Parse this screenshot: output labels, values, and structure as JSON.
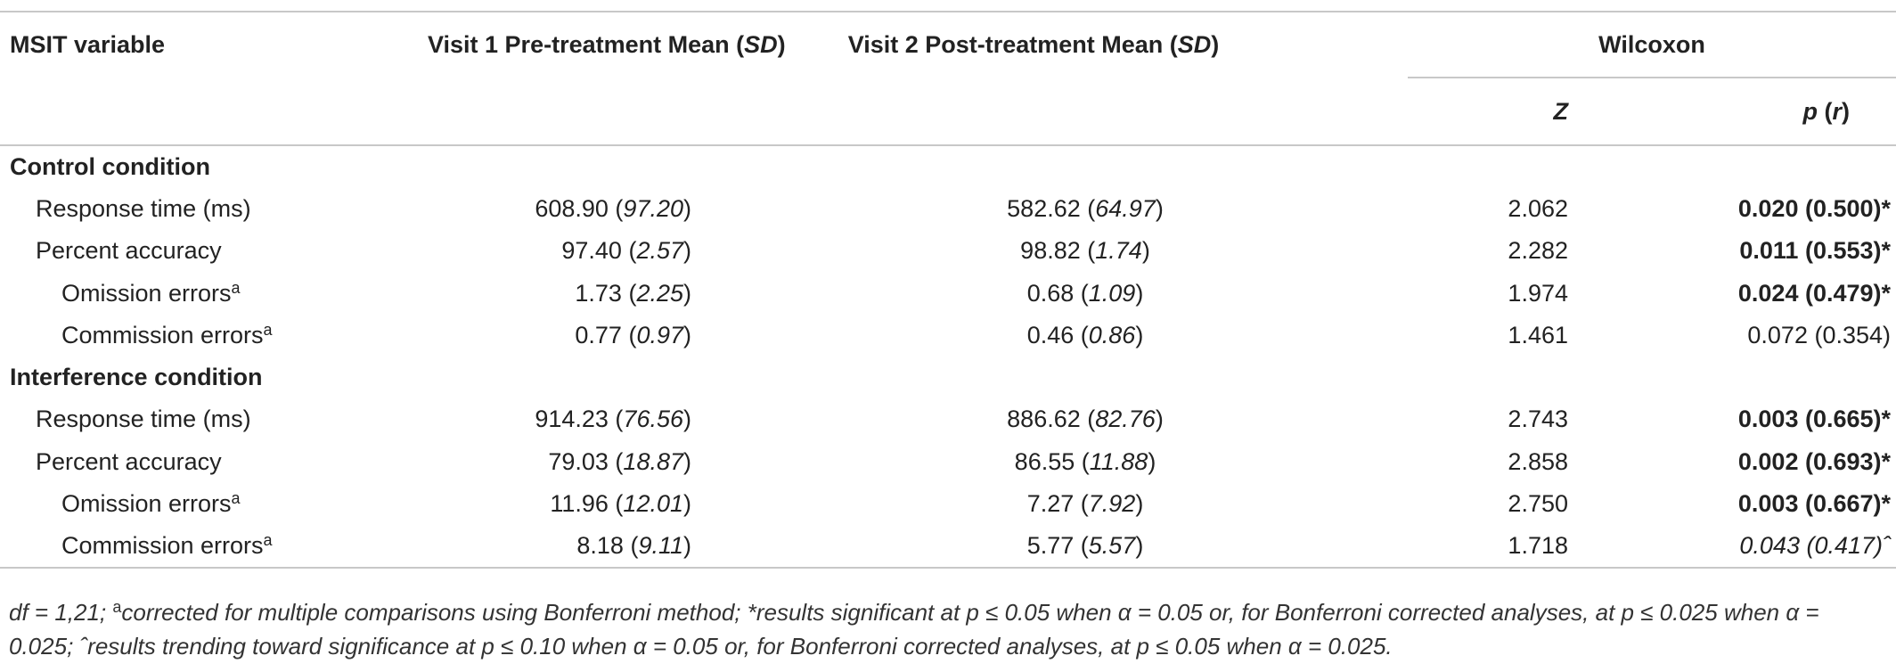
{
  "table": {
    "headers": {
      "variable": "MSIT variable",
      "visit1_prefix": "Visit 1 Pre-treatment Mean (",
      "visit1_sd": "SD",
      "visit1_suffix": ")",
      "visit2_prefix": "Visit 2 Post-treatment Mean (",
      "visit2_sd": "SD",
      "visit2_suffix": ")",
      "wilcoxon": "Wilcoxon",
      "z": "Z",
      "p": "p",
      "p_open": " (",
      "r": "r",
      "p_close": ")"
    },
    "sections": [
      {
        "title": "Control condition",
        "rows": [
          {
            "label": "Response time (ms)",
            "sup": "",
            "pre_mean": "608.90",
            "pre_sd": "97.20",
            "post_mean": "582.62",
            "post_sd": "64.97",
            "z": "2.062",
            "p": "0.020 (0.500)*"
          },
          {
            "label": "Percent accuracy",
            "sup": "",
            "pre_mean": "97.40",
            "pre_sd": "2.57",
            "post_mean": "98.82",
            "post_sd": "1.74",
            "z": "2.282",
            "p": "0.011 (0.553)*"
          },
          {
            "label": "Omission errors",
            "sup": "a",
            "pre_mean": "1.73",
            "pre_sd": "2.25",
            "post_mean": "0.68",
            "post_sd": "1.09",
            "z": "1.974",
            "p": "0.024 (0.479)*"
          },
          {
            "label": "Commission errors",
            "sup": "a",
            "pre_mean": "0.77",
            "pre_sd": "0.97",
            "post_mean": "0.46",
            "post_sd": "0.86",
            "z": "1.461",
            "p": "0.072 (0.354)"
          }
        ]
      },
      {
        "title": "Interference condition",
        "rows": [
          {
            "label": "Response time (ms)",
            "sup": "",
            "pre_mean": "914.23",
            "pre_sd": "76.56",
            "post_mean": "886.62",
            "post_sd": "82.76",
            "z": "2.743",
            "p": "0.003 (0.665)*"
          },
          {
            "label": "Percent accuracy",
            "sup": "",
            "pre_mean": "79.03",
            "pre_sd": "18.87",
            "post_mean": "86.55",
            "post_sd": "11.88",
            "z": "2.858",
            "p": "0.002 (0.693)*"
          },
          {
            "label": "Omission errors",
            "sup": "a",
            "pre_mean": "11.96",
            "pre_sd": "12.01",
            "post_mean": "7.27",
            "post_sd": "7.92",
            "z": "2.750",
            "p": "0.003 (0.667)*"
          },
          {
            "label": "Commission errors",
            "sup": "a",
            "pre_mean": "8.18",
            "pre_sd": "9.11",
            "post_mean": "5.77",
            "post_sd": "5.57",
            "z": "1.718",
            "p": "0.043 (0.417)ˆ"
          }
        ]
      }
    ]
  },
  "footnote": {
    "part1": "df = 1,21; ",
    "sup_a": "a",
    "part2": "corrected for multiple comparisons using Bonferroni method; *results significant at p ≤ 0.05 when α = 0.05 or, for Bonferroni corrected analyses, at p ≤ 0.025 when α = 0.025; ˆresults trending toward significance at p ≤ 0.10 when α = 0.05 or, for Bonferroni corrected analyses, at p ≤ 0.05 when α = 0.025."
  }
}
